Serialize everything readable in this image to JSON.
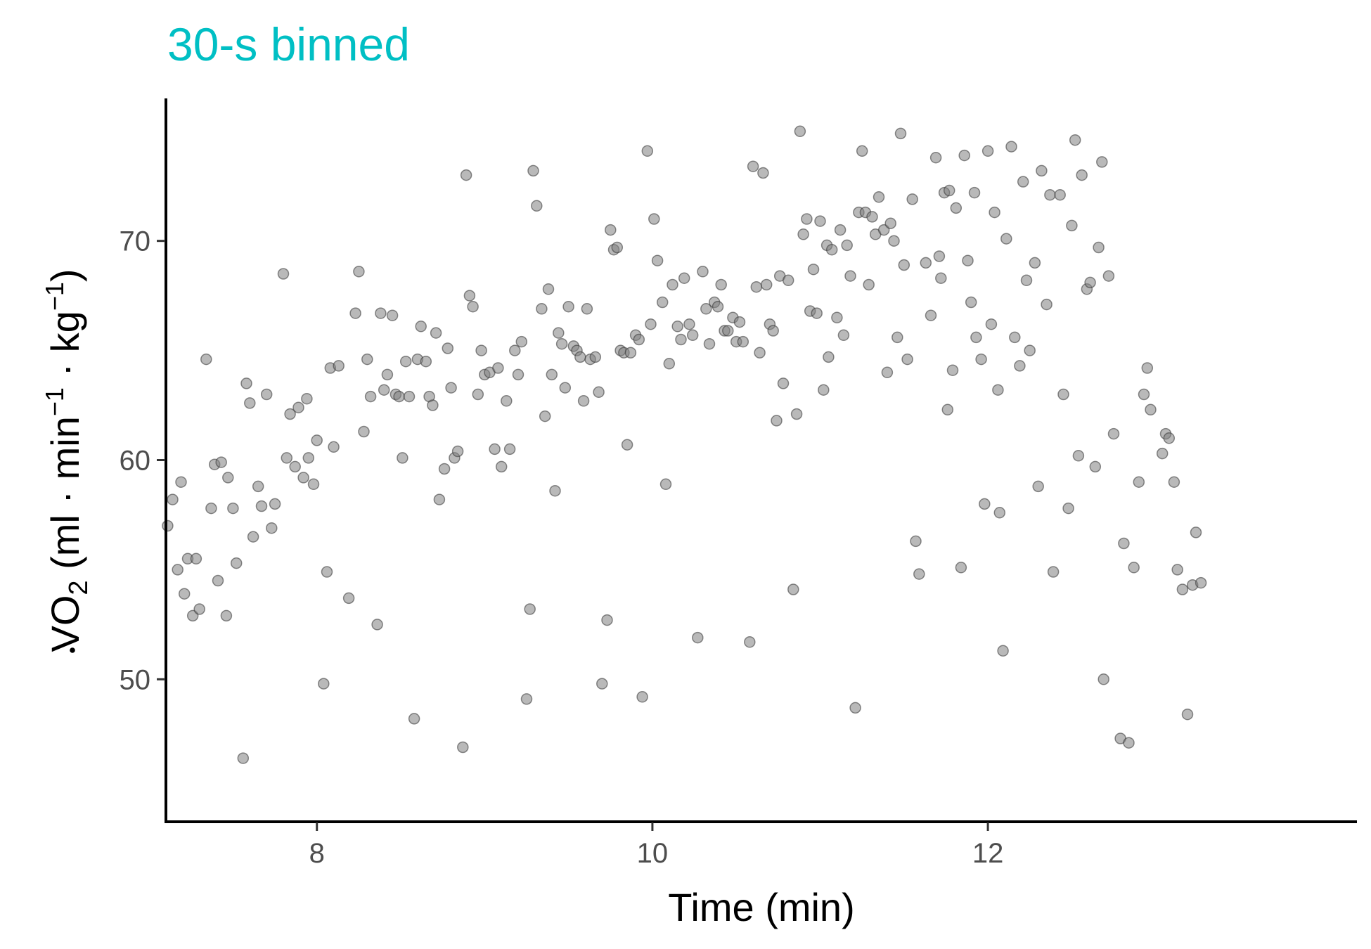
{
  "colors": {
    "title": "#00BFC4",
    "points": "#808080",
    "axis": "#000000",
    "tick_label": "#4D4D4D"
  },
  "chart_data": {
    "type": "scatter",
    "title": "30-s binned",
    "xlabel": "Time (min)",
    "ylabel": {
      "V": "V",
      "O": "O",
      "O_sub": "2",
      "open": "(",
      "ml": "ml",
      "dot1": "·",
      "min": "min",
      "min_exp": "−1",
      "dot2": "·",
      "kg": "kg",
      "kg_exp": "−1",
      "close": ")"
    },
    "xlim": [
      7.1,
      14.2
    ],
    "ylim": [
      43.5,
      76.5
    ],
    "xticks": [
      8,
      10,
      12
    ],
    "yticks": [
      50,
      60,
      70
    ],
    "xtick_labels": [
      "8",
      "10",
      "12"
    ],
    "ytick_labels": [
      "50",
      "60",
      "70"
    ],
    "grid": false,
    "legend": "none",
    "points": [
      [
        7.11,
        57.0
      ],
      [
        7.14,
        58.2
      ],
      [
        7.17,
        55.0
      ],
      [
        7.19,
        59.0
      ],
      [
        7.21,
        53.9
      ],
      [
        7.23,
        55.5
      ],
      [
        7.26,
        52.9
      ],
      [
        7.28,
        55.5
      ],
      [
        7.3,
        53.2
      ],
      [
        7.34,
        64.6
      ],
      [
        7.37,
        57.8
      ],
      [
        7.39,
        59.8
      ],
      [
        7.41,
        54.5
      ],
      [
        7.43,
        59.9
      ],
      [
        7.46,
        52.9
      ],
      [
        7.47,
        59.2
      ],
      [
        7.5,
        57.8
      ],
      [
        7.52,
        55.3
      ],
      [
        7.56,
        46.4
      ],
      [
        7.58,
        63.5
      ],
      [
        7.6,
        62.6
      ],
      [
        7.62,
        56.5
      ],
      [
        7.65,
        58.8
      ],
      [
        7.67,
        57.9
      ],
      [
        7.7,
        63.0
      ],
      [
        7.73,
        56.9
      ],
      [
        7.75,
        58.0
      ],
      [
        7.8,
        68.5
      ],
      [
        7.82,
        60.1
      ],
      [
        7.84,
        62.1
      ],
      [
        7.87,
        59.7
      ],
      [
        7.89,
        62.4
      ],
      [
        7.92,
        59.2
      ],
      [
        7.94,
        62.8
      ],
      [
        7.95,
        60.1
      ],
      [
        7.98,
        58.9
      ],
      [
        8.0,
        60.9
      ],
      [
        8.04,
        49.8
      ],
      [
        8.06,
        54.9
      ],
      [
        8.08,
        64.2
      ],
      [
        8.1,
        60.6
      ],
      [
        8.13,
        64.3
      ],
      [
        8.19,
        53.7
      ],
      [
        8.23,
        66.7
      ],
      [
        8.25,
        68.6
      ],
      [
        8.28,
        61.3
      ],
      [
        8.3,
        64.6
      ],
      [
        8.32,
        62.9
      ],
      [
        8.36,
        52.5
      ],
      [
        8.38,
        66.7
      ],
      [
        8.4,
        63.2
      ],
      [
        8.42,
        63.9
      ],
      [
        8.45,
        66.6
      ],
      [
        8.47,
        63.0
      ],
      [
        8.49,
        62.9
      ],
      [
        8.51,
        60.1
      ],
      [
        8.53,
        64.5
      ],
      [
        8.55,
        62.9
      ],
      [
        8.58,
        48.2
      ],
      [
        8.6,
        64.6
      ],
      [
        8.62,
        66.1
      ],
      [
        8.65,
        64.5
      ],
      [
        8.67,
        62.9
      ],
      [
        8.69,
        62.5
      ],
      [
        8.71,
        65.8
      ],
      [
        8.73,
        58.2
      ],
      [
        8.76,
        59.6
      ],
      [
        8.78,
        65.1
      ],
      [
        8.8,
        63.3
      ],
      [
        8.82,
        60.1
      ],
      [
        8.84,
        60.4
      ],
      [
        8.87,
        46.9
      ],
      [
        8.89,
        73.0
      ],
      [
        8.91,
        67.5
      ],
      [
        8.93,
        67.0
      ],
      [
        8.96,
        63.0
      ],
      [
        8.98,
        65.0
      ],
      [
        9.0,
        63.9
      ],
      [
        9.03,
        64.0
      ],
      [
        9.06,
        60.5
      ],
      [
        9.08,
        64.2
      ],
      [
        9.1,
        59.7
      ],
      [
        9.13,
        62.7
      ],
      [
        9.15,
        60.5
      ],
      [
        9.18,
        65.0
      ],
      [
        9.2,
        63.9
      ],
      [
        9.22,
        65.4
      ],
      [
        9.25,
        49.1
      ],
      [
        9.27,
        53.2
      ],
      [
        9.29,
        73.2
      ],
      [
        9.31,
        71.6
      ],
      [
        9.34,
        66.9
      ],
      [
        9.36,
        62.0
      ],
      [
        9.38,
        67.8
      ],
      [
        9.4,
        63.9
      ],
      [
        9.42,
        58.6
      ],
      [
        9.44,
        65.8
      ],
      [
        9.46,
        65.3
      ],
      [
        9.48,
        63.3
      ],
      [
        9.5,
        67.0
      ],
      [
        9.53,
        65.2
      ],
      [
        9.55,
        65.0
      ],
      [
        9.57,
        64.7
      ],
      [
        9.59,
        62.7
      ],
      [
        9.61,
        66.9
      ],
      [
        9.63,
        64.6
      ],
      [
        9.66,
        64.7
      ],
      [
        9.68,
        63.1
      ],
      [
        9.7,
        49.8
      ],
      [
        9.73,
        52.7
      ],
      [
        9.75,
        70.5
      ],
      [
        9.77,
        69.6
      ],
      [
        9.79,
        69.7
      ],
      [
        9.81,
        65.0
      ],
      [
        9.83,
        64.9
      ],
      [
        9.85,
        60.7
      ],
      [
        9.87,
        64.9
      ],
      [
        9.9,
        65.7
      ],
      [
        9.92,
        65.5
      ],
      [
        9.94,
        49.2
      ],
      [
        9.97,
        74.1
      ],
      [
        9.99,
        66.2
      ],
      [
        10.01,
        71.0
      ],
      [
        10.03,
        69.1
      ],
      [
        10.06,
        67.2
      ],
      [
        10.08,
        58.9
      ],
      [
        10.1,
        64.4
      ],
      [
        10.12,
        68.0
      ],
      [
        10.15,
        66.1
      ],
      [
        10.17,
        65.5
      ],
      [
        10.19,
        68.3
      ],
      [
        10.22,
        66.2
      ],
      [
        10.24,
        65.7
      ],
      [
        10.27,
        51.9
      ],
      [
        10.3,
        68.6
      ],
      [
        10.32,
        66.9
      ],
      [
        10.34,
        65.3
      ],
      [
        10.37,
        67.2
      ],
      [
        10.39,
        67.0
      ],
      [
        10.41,
        68.0
      ],
      [
        10.43,
        65.9
      ],
      [
        10.45,
        65.9
      ],
      [
        10.48,
        66.5
      ],
      [
        10.5,
        65.4
      ],
      [
        10.52,
        66.3
      ],
      [
        10.54,
        65.4
      ],
      [
        10.58,
        51.7
      ],
      [
        10.6,
        73.4
      ],
      [
        10.62,
        67.9
      ],
      [
        10.64,
        64.9
      ],
      [
        10.66,
        73.1
      ],
      [
        10.68,
        68.0
      ],
      [
        10.7,
        66.2
      ],
      [
        10.72,
        65.9
      ],
      [
        10.74,
        61.8
      ],
      [
        10.76,
        68.4
      ],
      [
        10.78,
        63.5
      ],
      [
        10.81,
        68.2
      ],
      [
        10.84,
        54.1
      ],
      [
        10.86,
        62.1
      ],
      [
        10.88,
        75.0
      ],
      [
        10.9,
        70.3
      ],
      [
        10.92,
        71.0
      ],
      [
        10.94,
        66.8
      ],
      [
        10.96,
        68.7
      ],
      [
        10.98,
        66.7
      ],
      [
        11.0,
        70.9
      ],
      [
        11.02,
        63.2
      ],
      [
        11.04,
        69.8
      ],
      [
        11.05,
        64.7
      ],
      [
        11.07,
        69.6
      ],
      [
        11.1,
        66.5
      ],
      [
        11.12,
        70.5
      ],
      [
        11.14,
        65.7
      ],
      [
        11.16,
        69.8
      ],
      [
        11.18,
        68.4
      ],
      [
        11.21,
        48.7
      ],
      [
        11.23,
        71.3
      ],
      [
        11.25,
        74.1
      ],
      [
        11.27,
        71.3
      ],
      [
        11.29,
        68.0
      ],
      [
        11.31,
        71.1
      ],
      [
        11.33,
        70.3
      ],
      [
        11.35,
        72.0
      ],
      [
        11.38,
        70.5
      ],
      [
        11.4,
        64.0
      ],
      [
        11.42,
        70.8
      ],
      [
        11.44,
        70.0
      ],
      [
        11.46,
        65.6
      ],
      [
        11.48,
        74.9
      ],
      [
        11.5,
        68.9
      ],
      [
        11.52,
        64.6
      ],
      [
        11.55,
        71.9
      ],
      [
        11.57,
        56.3
      ],
      [
        11.59,
        54.8
      ],
      [
        11.63,
        69.0
      ],
      [
        11.66,
        66.6
      ],
      [
        11.69,
        73.8
      ],
      [
        11.71,
        69.3
      ],
      [
        11.72,
        68.3
      ],
      [
        11.74,
        72.2
      ],
      [
        11.76,
        62.3
      ],
      [
        11.77,
        72.3
      ],
      [
        11.79,
        64.1
      ],
      [
        11.81,
        71.5
      ],
      [
        11.84,
        55.1
      ],
      [
        11.86,
        73.9
      ],
      [
        11.88,
        69.1
      ],
      [
        11.9,
        67.2
      ],
      [
        11.92,
        72.2
      ],
      [
        11.93,
        65.6
      ],
      [
        11.96,
        64.6
      ],
      [
        11.98,
        58.0
      ],
      [
        12.0,
        74.1
      ],
      [
        12.02,
        66.2
      ],
      [
        12.04,
        71.3
      ],
      [
        12.06,
        63.2
      ],
      [
        12.07,
        57.6
      ],
      [
        12.09,
        51.3
      ],
      [
        12.11,
        70.1
      ],
      [
        12.14,
        74.3
      ],
      [
        12.16,
        65.6
      ],
      [
        12.19,
        64.3
      ],
      [
        12.21,
        72.7
      ],
      [
        12.23,
        68.2
      ],
      [
        12.25,
        65.0
      ],
      [
        12.28,
        69.0
      ],
      [
        12.3,
        58.8
      ],
      [
        12.32,
        73.2
      ],
      [
        12.35,
        67.1
      ],
      [
        12.37,
        72.1
      ],
      [
        12.39,
        54.9
      ],
      [
        12.43,
        72.1
      ],
      [
        12.45,
        63.0
      ],
      [
        12.48,
        57.8
      ],
      [
        12.5,
        70.7
      ],
      [
        12.52,
        74.6
      ],
      [
        12.54,
        60.2
      ],
      [
        12.56,
        73.0
      ],
      [
        12.59,
        67.8
      ],
      [
        12.61,
        68.1
      ],
      [
        12.64,
        59.7
      ],
      [
        12.66,
        69.7
      ],
      [
        12.68,
        73.6
      ],
      [
        12.69,
        50.0
      ],
      [
        12.72,
        68.4
      ],
      [
        12.75,
        61.2
      ],
      [
        12.79,
        47.3
      ],
      [
        12.81,
        56.2
      ],
      [
        12.84,
        47.1
      ],
      [
        12.87,
        55.1
      ],
      [
        12.9,
        59.0
      ],
      [
        12.93,
        63.0
      ],
      [
        12.95,
        64.2
      ],
      [
        12.97,
        62.3
      ],
      [
        13.04,
        60.3
      ],
      [
        13.06,
        61.2
      ],
      [
        13.08,
        61.0
      ],
      [
        13.11,
        59.0
      ],
      [
        13.13,
        55.0
      ],
      [
        13.16,
        54.1
      ],
      [
        13.19,
        48.4
      ],
      [
        13.22,
        54.3
      ],
      [
        13.24,
        56.7
      ],
      [
        13.27,
        54.4
      ]
    ]
  }
}
